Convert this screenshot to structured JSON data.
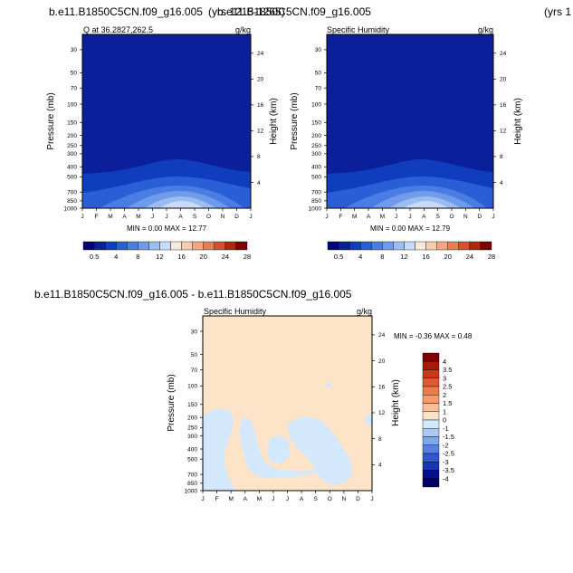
{
  "figure": {
    "top_title_left": "b.e11.B1850C5CN.f09_g16.005",
    "top_title_mid": "(yrs 1215-1265)",
    "top_title_overlap": "b.e11.B1850C5CN.f09_g16.005",
    "top_title_right": "(yrs 1",
    "diff_title": "b.e11.B1850C5CN.f09_g16.005 - b.e11.B1850C5CN.f09_g16.005"
  },
  "chart_data": [
    {
      "type": "contour",
      "title": "Q at 36.2827,262.5",
      "units": "g/kg",
      "xlabel": "",
      "ylabel": "Pressure (mb)",
      "ylabel_right": "Height (km)",
      "x_ticks": [
        "J",
        "F",
        "M",
        "A",
        "M",
        "J",
        "J",
        "A",
        "S",
        "O",
        "N",
        "D",
        "J"
      ],
      "pressure_ticks": [
        30,
        50,
        70,
        100,
        150,
        200,
        250,
        300,
        400,
        500,
        700,
        850,
        1000
      ],
      "height_ticks": [
        4,
        8,
        12,
        16,
        20,
        24
      ],
      "min_max_text": "MIN =   0.00 MAX =  12.77",
      "min": 0.0,
      "max": 12.77,
      "colorbar_labels": [
        "0.5",
        "4",
        "8",
        "12",
        "16",
        "20",
        "24",
        "28"
      ],
      "colorbar_colors": [
        "#00007a",
        "#0a1f99",
        "#0f3dbd",
        "#2a5ed6",
        "#4a7de3",
        "#6f9bea",
        "#9dbcf0",
        "#c8dcf7",
        "#f6eadb",
        "#f7cdb0",
        "#f4a582",
        "#ea7c55",
        "#d94f2e",
        "#b5230e",
        "#800000"
      ]
    },
    {
      "type": "contour",
      "title": "Specific Humidity",
      "units": "g/kg",
      "xlabel": "",
      "ylabel": "Pressure (mb)",
      "ylabel_right": "Height (km)",
      "x_ticks": [
        "J",
        "F",
        "M",
        "A",
        "M",
        "J",
        "J",
        "A",
        "S",
        "O",
        "N",
        "D",
        "J"
      ],
      "pressure_ticks": [
        30,
        50,
        70,
        100,
        150,
        200,
        250,
        300,
        400,
        500,
        700,
        850,
        1000
      ],
      "height_ticks": [
        4,
        8,
        12,
        16,
        20,
        24
      ],
      "min_max_text": "MIN =   0.00 MAX =  12.79",
      "min": 0.0,
      "max": 12.79,
      "colorbar_labels": [
        "0.5",
        "4",
        "8",
        "12",
        "16",
        "20",
        "24",
        "28"
      ],
      "colorbar_colors": [
        "#00007a",
        "#0a1f99",
        "#0f3dbd",
        "#2a5ed6",
        "#4a7de3",
        "#6f9bea",
        "#9dbcf0",
        "#c8dcf7",
        "#f6eadb",
        "#f7cdb0",
        "#f4a582",
        "#ea7c55",
        "#d94f2e",
        "#b5230e",
        "#800000"
      ]
    },
    {
      "type": "contour",
      "title": "Specific Humidity",
      "units": "g/kg",
      "xlabel": "",
      "ylabel": "Pressure (mb)",
      "ylabel_right": "Height (km)",
      "x_ticks": [
        "J",
        "F",
        "M",
        "A",
        "M",
        "J",
        "J",
        "A",
        "S",
        "O",
        "N",
        "D",
        "J"
      ],
      "pressure_ticks": [
        30,
        50,
        70,
        100,
        150,
        200,
        250,
        300,
        400,
        500,
        700,
        850,
        1000
      ],
      "height_ticks": [
        4,
        8,
        12,
        16,
        20,
        24
      ],
      "min_max_text": "MIN =  -0.36 MAX =   0.48",
      "min": -0.36,
      "max": 0.48,
      "colorbar_labels": [
        "4",
        "3.5",
        "3",
        "2.5",
        "2",
        "1.5",
        "1",
        "0",
        "-1",
        "-1.5",
        "-2",
        "-2.5",
        "-3",
        "-3.5",
        "-4"
      ],
      "colorbar_colors": [
        "#800000",
        "#a61a0a",
        "#c93a1a",
        "#e0592f",
        "#f07a4a",
        "#f59a6c",
        "#f9bd98",
        "#fde4c8",
        "#d4e8fb",
        "#aac8f3",
        "#7ea6ea",
        "#5580de",
        "#2f58cf",
        "#1636b5",
        "#03108a",
        "#000060"
      ]
    }
  ]
}
